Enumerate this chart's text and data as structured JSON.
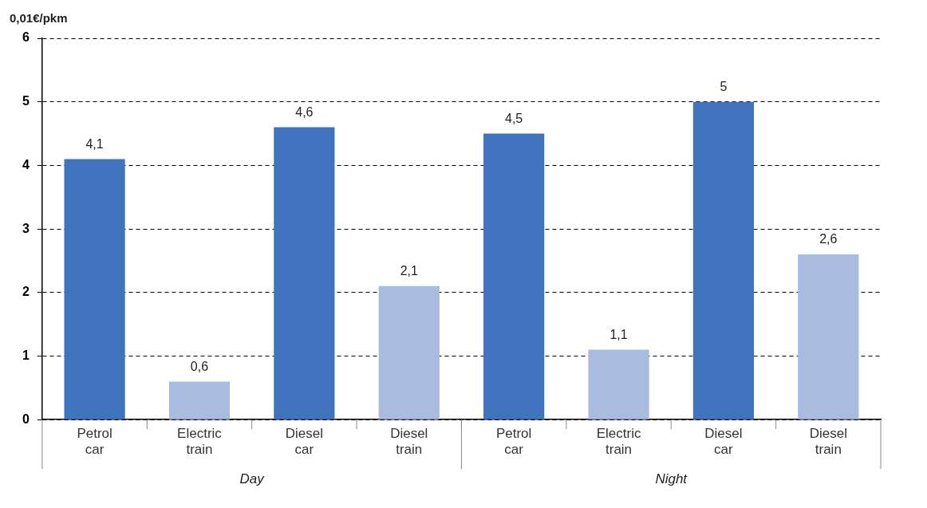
{
  "chart_data": {
    "type": "bar",
    "ylabel": "0,01€/pkm",
    "categories": [
      "Petrol car",
      "Electric train",
      "Diesel car",
      "Diesel train",
      "Petrol car",
      "Electric train",
      "Diesel car",
      "Diesel train"
    ],
    "values": [
      4.1,
      0.6,
      4.6,
      2.1,
      4.5,
      1.1,
      5,
      2.6
    ],
    "colors": [
      "#3f73bd",
      "#a9bbdf",
      "#3f73bd",
      "#a9bbdf",
      "#3f73bd",
      "#a9bbdf",
      "#3f73bd",
      "#a9bbdf"
    ],
    "value_labels": [
      "4,1",
      "0,6",
      "4,6",
      "2,1",
      "4,5",
      "1,1",
      "5",
      "2,6"
    ],
    "ylim": [
      0,
      6
    ],
    "yticks": [
      0,
      1,
      2,
      3,
      4,
      5,
      6
    ],
    "grid": "y",
    "legend": false,
    "annotations": [
      "Day",
      "Night"
    ]
  }
}
